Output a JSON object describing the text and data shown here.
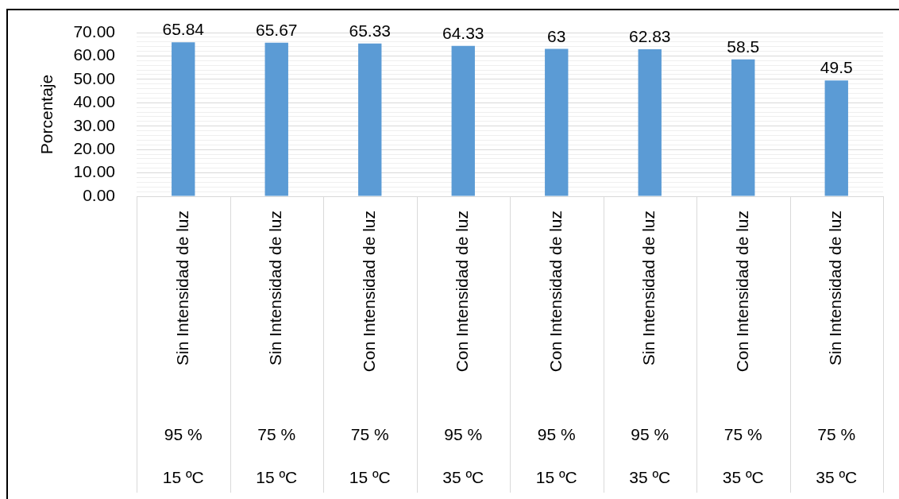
{
  "chart_data": {
    "type": "bar",
    "ylabel": "Porcentaje",
    "categories": [
      "Sin Intensidad de luz\n95 %\n15 ºC",
      "Sin Intensidad de luz\n75 %\n15 ºC",
      "Con Intensidad de luz\n75 %\n15 ºC",
      "Con Intensidad de luz\n95 %\n35 ºC",
      "Con Intensidad de luz\n95 %\n15 ºC",
      "Sin Intensidad de luz\n95 %\n35 ºC",
      "Con Intensidad de luz\n75 %\n35 ºC",
      "Sin Intensidad de luz\n75 %\n35 ºC"
    ],
    "values": [
      65.84,
      65.67,
      65.33,
      64.33,
      63,
      62.83,
      58.5,
      49.5
    ],
    "color": "#5b9bd5",
    "ylim": [
      0,
      70
    ],
    "yticks": [
      {
        "value": 0,
        "label": "0.00"
      },
      {
        "value": 2,
        "label": null
      },
      {
        "value": 4,
        "label": null
      },
      {
        "value": 6,
        "label": null
      },
      {
        "value": 8,
        "label": null
      },
      {
        "value": 10,
        "label": "10.00"
      },
      {
        "value": 12,
        "label": null
      },
      {
        "value": 14,
        "label": null
      },
      {
        "value": 16,
        "label": null
      },
      {
        "value": 18,
        "label": null
      },
      {
        "value": 20,
        "label": "20.00"
      },
      {
        "value": 22,
        "label": null
      },
      {
        "value": 24,
        "label": null
      },
      {
        "value": 26,
        "label": null
      },
      {
        "value": 28,
        "label": null
      },
      {
        "value": 30,
        "label": "30.00"
      },
      {
        "value": 32,
        "label": null
      },
      {
        "value": 34,
        "label": null
      },
      {
        "value": 36,
        "label": null
      },
      {
        "value": 38,
        "label": null
      },
      {
        "value": 40,
        "label": "40.00"
      },
      {
        "value": 42,
        "label": null
      },
      {
        "value": 44,
        "label": null
      },
      {
        "value": 46,
        "label": null
      },
      {
        "value": 48,
        "label": null
      },
      {
        "value": 50,
        "label": "50.00"
      },
      {
        "value": 52,
        "label": null
      },
      {
        "value": 54,
        "label": null
      },
      {
        "value": 56,
        "label": null
      },
      {
        "value": 58,
        "label": null
      },
      {
        "value": 60,
        "label": "60.00"
      },
      {
        "value": 62,
        "label": null
      },
      {
        "value": 64,
        "label": null
      },
      {
        "value": 66,
        "label": null
      },
      {
        "value": 68,
        "label": null
      },
      {
        "value": 70,
        "label": "70.00"
      }
    ],
    "grid": true,
    "data_labels": true
  }
}
